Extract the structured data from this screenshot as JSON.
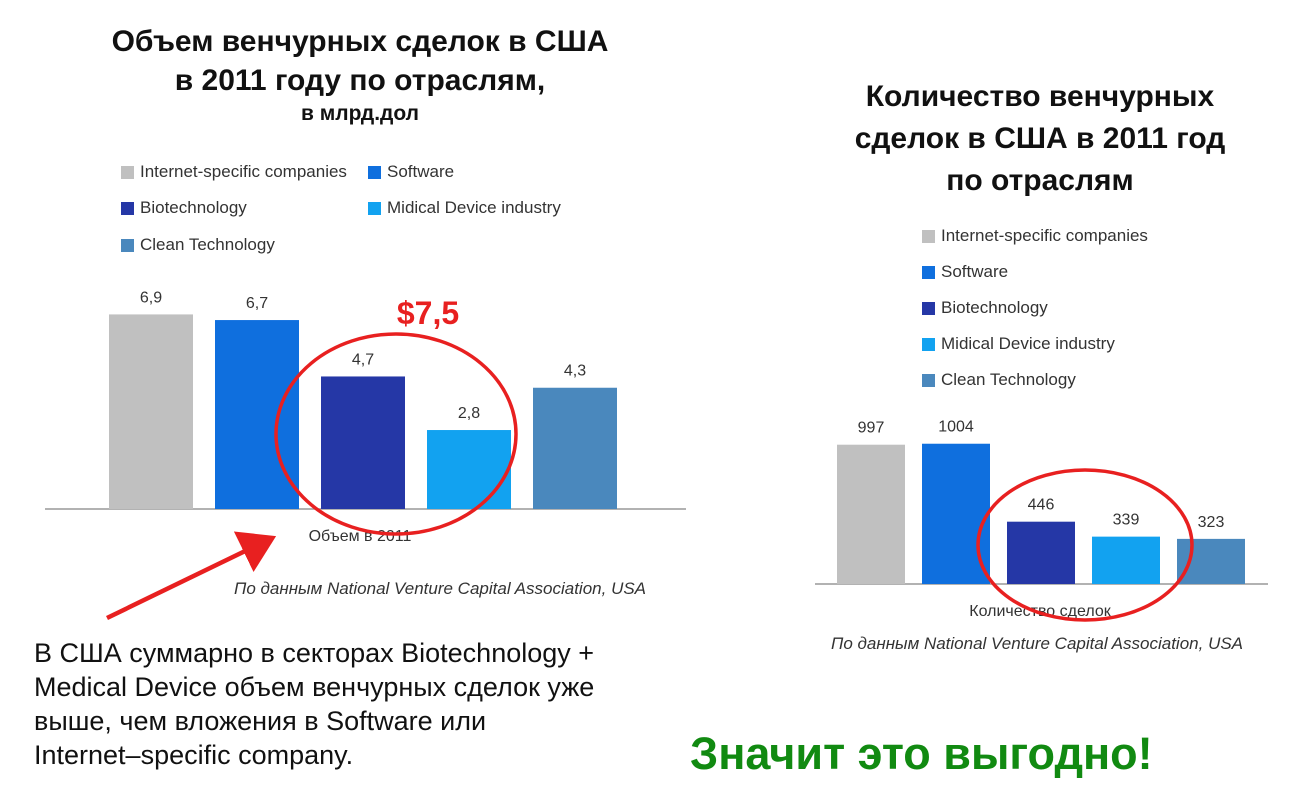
{
  "colors": {
    "internet": "#c0c0c0",
    "software": "#0f6fde",
    "biotech": "#2537a6",
    "medical": "#12a2f0",
    "clean": "#4a88bd",
    "highlight": "#e82020",
    "conclusion": "#118a11"
  },
  "left": {
    "title_line1": "Объем венчурных сделок в США",
    "title_line2": "в 2011 году по отраслям,",
    "subtitle": "в млрд.дол",
    "source": "По данным National Venture Capital Association, USA",
    "highlight_label": "$7,5"
  },
  "right": {
    "title_line1": "Количество венчурных",
    "title_line2": "сделок в США в 2011 год",
    "title_line3": "по отраслям",
    "source": "По данным National Venture Capital Association, USA"
  },
  "legend": [
    "Internet-specific companies",
    "Software",
    "Biotechnology",
    "Midical Device industry",
    "Clean Technology"
  ],
  "bottom_text": {
    "line1": "В США суммарно в секторах Biotechnology +",
    "line2": "Medical Device объем венчурных сделок уже",
    "line3": "выше, чем вложения в Software или",
    "line4": "Internet–specific company."
  },
  "conclusion": "Значит это выгодно!",
  "chart_data": [
    {
      "type": "bar",
      "title": "Объем венчурных сделок в США в 2011 году по отраслям,",
      "subtitle": "в млрд.дол",
      "categories": [
        "Объем в 2011"
      ],
      "series": [
        {
          "name": "Internet-specific companies",
          "values": [
            6.9
          ],
          "label": "6,9"
        },
        {
          "name": "Software",
          "values": [
            6.7
          ],
          "label": "6,7"
        },
        {
          "name": "Biotechnology",
          "values": [
            4.7
          ],
          "label": "4,7"
        },
        {
          "name": "Midical Device industry",
          "values": [
            2.8
          ],
          "label": "2,8"
        },
        {
          "name": "Clean Technology",
          "values": [
            4.3
          ],
          "label": "4,3"
        }
      ],
      "ylim": [
        0,
        8
      ],
      "grid": false,
      "legend_position": "top"
    },
    {
      "type": "bar",
      "title": "Количество венчурных сделок в США в 2011 год по отраслям",
      "categories": [
        "Количество сделок"
      ],
      "series": [
        {
          "name": "Internet-specific companies",
          "values": [
            997
          ],
          "label": "997"
        },
        {
          "name": "Software",
          "values": [
            1004
          ],
          "label": "1004"
        },
        {
          "name": "Biotechnology",
          "values": [
            446
          ],
          "label": "446"
        },
        {
          "name": "Midical Device industry",
          "values": [
            339
          ],
          "label": "339"
        },
        {
          "name": "Clean Technology",
          "values": [
            323
          ],
          "label": "323"
        }
      ],
      "ylim": [
        0,
        1400
      ],
      "grid": false,
      "legend_position": "top"
    }
  ]
}
